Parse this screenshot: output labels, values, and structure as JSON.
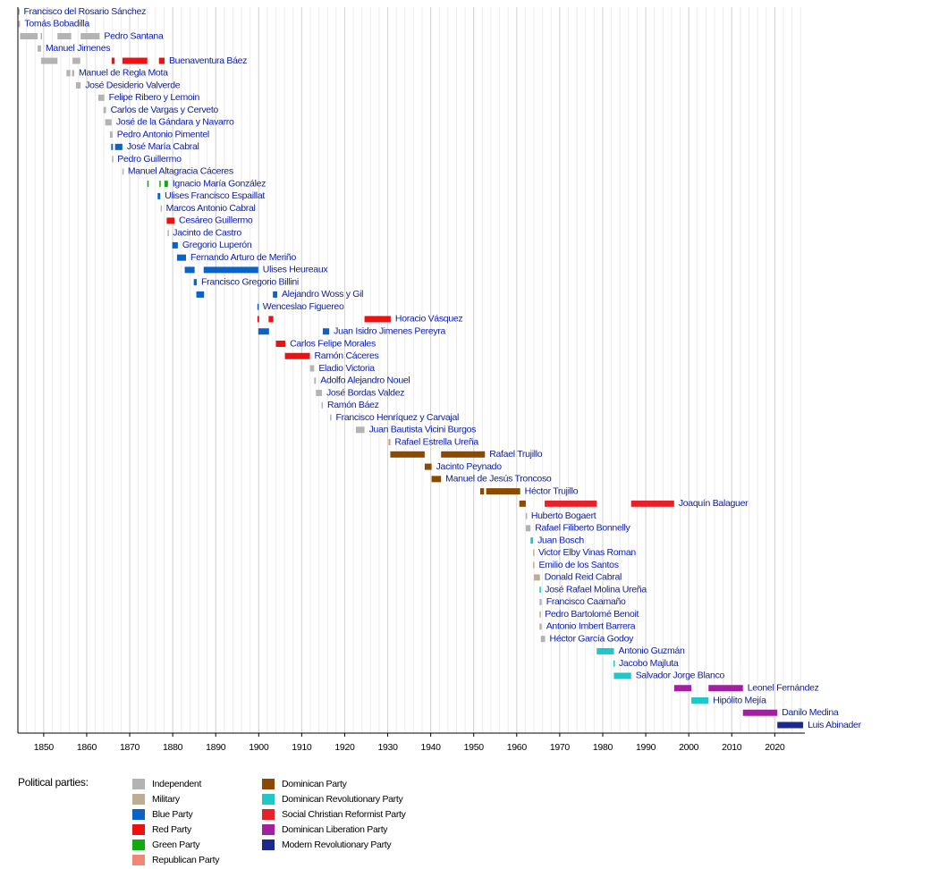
{
  "chart_data": {
    "type": "timeline",
    "xlim": [
      1844,
      2027
    ],
    "xticks": [
      1850,
      1860,
      1870,
      1880,
      1890,
      1900,
      1910,
      1920,
      1930,
      1940,
      1950,
      1960,
      1970,
      1980,
      1990,
      2000,
      2010,
      2020
    ],
    "xminorticks": [
      1846,
      1848,
      1850,
      1852,
      1854,
      1856,
      1858,
      1860,
      1862,
      1864,
      1866,
      1868,
      1870,
      1872,
      1874,
      1876,
      1878,
      1880,
      1882,
      1884,
      1886,
      1888,
      1890,
      1892,
      1894,
      1896,
      1898,
      1900,
      1902,
      1904,
      1906,
      1908,
      1910,
      1912,
      1914,
      1916,
      1918,
      1920,
      1922,
      1924,
      1926,
      1928,
      1930,
      1932,
      1934,
      1936,
      1938,
      1940,
      1942,
      1944,
      1946,
      1948,
      1950,
      1952,
      1954,
      1956,
      1958,
      1960,
      1962,
      1964,
      1966,
      1968,
      1970,
      1972,
      1974,
      1976,
      1978,
      1980,
      1982,
      1984,
      1986,
      1988,
      1990,
      1992,
      1994,
      1996,
      1998,
      2000,
      2002,
      2004,
      2006,
      2008,
      2010,
      2012,
      2014,
      2016,
      2018,
      2020,
      2022,
      2024,
      2026
    ],
    "grid": true,
    "rows": [
      {
        "name": "Francisco del Rosario Sánchez",
        "terms": [
          {
            "start": 1844.1,
            "end": 1844.3,
            "color": "#b3b3b3"
          }
        ]
      },
      {
        "name": "Tomás Bobadilla",
        "terms": [
          {
            "start": 1844.1,
            "end": 1844.5,
            "color": "#b3b3b3"
          }
        ]
      },
      {
        "name": "Pedro Santana",
        "terms": [
          {
            "start": 1844.5,
            "end": 1848.6,
            "color": "#b3b3b3"
          },
          {
            "start": 1849.3,
            "end": 1849.6,
            "color": "#b3b3b3"
          },
          {
            "start": 1853.2,
            "end": 1856.4,
            "color": "#b3b3b3"
          },
          {
            "start": 1858.6,
            "end": 1863,
            "color": "#b3b3b3"
          }
        ]
      },
      {
        "name": "Manuel Jimenes",
        "terms": [
          {
            "start": 1848.6,
            "end": 1849.4,
            "color": "#b3b3b3"
          }
        ]
      },
      {
        "name": "Buenaventura Báez",
        "terms": [
          {
            "start": 1849.4,
            "end": 1853.2,
            "color": "#b3b3b3"
          },
          {
            "start": 1856.7,
            "end": 1858.5,
            "color": "#b3b3b3"
          },
          {
            "start": 1865.8,
            "end": 1866.5,
            "color": "#ee1111"
          },
          {
            "start": 1868.3,
            "end": 1874.1,
            "color": "#ee1111"
          },
          {
            "start": 1876.8,
            "end": 1878.1,
            "color": "#ee1111"
          }
        ]
      },
      {
        "name": "Manuel de Regla Mota",
        "terms": [
          {
            "start": 1855.3,
            "end": 1856.2,
            "color": "#b3b3b3"
          },
          {
            "start": 1856.6,
            "end": 1857.1,
            "color": "#b3b3b3"
          }
        ]
      },
      {
        "name": "José Desiderio Valverde",
        "terms": [
          {
            "start": 1857.5,
            "end": 1858.6,
            "color": "#b3b3b3"
          }
        ]
      },
      {
        "name": "Felipe Ribero y Lemoin",
        "terms": [
          {
            "start": 1862.7,
            "end": 1864.1,
            "color": "#b3b3b3"
          }
        ]
      },
      {
        "name": "Carlos de Vargas y Cerveto",
        "terms": [
          {
            "start": 1863.9,
            "end": 1864.5,
            "color": "#b3b3b3"
          }
        ]
      },
      {
        "name": "José de la Gándara y Navarro",
        "terms": [
          {
            "start": 1864.3,
            "end": 1865.8,
            "color": "#b3b3b3"
          }
        ]
      },
      {
        "name": "Pedro Antonio Pimentel",
        "terms": [
          {
            "start": 1865.4,
            "end": 1866,
            "color": "#b3b3b3"
          }
        ]
      },
      {
        "name": "José María Cabral",
        "terms": [
          {
            "start": 1865.7,
            "end": 1866.1,
            "color": "#0a64c8"
          },
          {
            "start": 1866.6,
            "end": 1868.3,
            "color": "#0a64c8"
          }
        ]
      },
      {
        "name": "Pedro Guillermo",
        "terms": [
          {
            "start": 1865.9,
            "end": 1866.1,
            "color": "#b3b3b3"
          }
        ]
      },
      {
        "name": "Manuel Altagracia Cáceres",
        "terms": [
          {
            "start": 1868.3,
            "end": 1868.5,
            "color": "#b3b3b3"
          }
        ]
      },
      {
        "name": "Ignacio María González",
        "terms": [
          {
            "start": 1874.1,
            "end": 1874.4,
            "color": "#11aa11"
          },
          {
            "start": 1876.9,
            "end": 1877.2,
            "color": "#11aa11"
          },
          {
            "start": 1878.1,
            "end": 1878.9,
            "color": "#11aa11"
          }
        ]
      },
      {
        "name": "Ulises Francisco Espaillat",
        "terms": [
          {
            "start": 1876.5,
            "end": 1877.1,
            "color": "#0a64c8"
          }
        ]
      },
      {
        "name": "Marcos Antonio Cabral",
        "terms": [
          {
            "start": 1877.2,
            "end": 1877.4,
            "color": "#b3b3b3"
          }
        ]
      },
      {
        "name": "Cesáreo Guillermo",
        "terms": [
          {
            "start": 1878.6,
            "end": 1880.4,
            "color": "#ee1111"
          }
        ]
      },
      {
        "name": "Jacinto de Castro",
        "terms": [
          {
            "start": 1878.8,
            "end": 1879,
            "color": "#b3b3b3"
          }
        ]
      },
      {
        "name": "Gregorio Luperón",
        "terms": [
          {
            "start": 1879.9,
            "end": 1881.2,
            "color": "#0a64c8"
          }
        ]
      },
      {
        "name": "Fernando Arturo de Meriño",
        "terms": [
          {
            "start": 1881,
            "end": 1883.1,
            "color": "#0a64c8"
          }
        ]
      },
      {
        "name": "Ulises Heureaux",
        "terms": [
          {
            "start": 1882.8,
            "end": 1885.1,
            "color": "#0a64c8"
          },
          {
            "start": 1887.2,
            "end": 1899.9,
            "color": "#0a64c8"
          }
        ]
      },
      {
        "name": "Francisco Gregorio Billini",
        "terms": [
          {
            "start": 1884.9,
            "end": 1885.6,
            "color": "#0a64c8"
          }
        ]
      },
      {
        "name": "Alejandro Woss y Gil",
        "terms": [
          {
            "start": 1885.5,
            "end": 1887.3,
            "color": "#0a64c8"
          },
          {
            "start": 1903.3,
            "end": 1904.3,
            "color": "#0a64c8"
          }
        ]
      },
      {
        "name": "Wenceslao Figuereo",
        "terms": [
          {
            "start": 1899.7,
            "end": 1899.9,
            "color": "#0a64c8"
          }
        ]
      },
      {
        "name": "Horacio Vásquez",
        "terms": [
          {
            "start": 1899.7,
            "end": 1900.1,
            "color": "#ee1111"
          },
          {
            "start": 1902.3,
            "end": 1903.4,
            "color": "#ee1111"
          },
          {
            "start": 1924.6,
            "end": 1930.7,
            "color": "#ee1111"
          }
        ]
      },
      {
        "name": "Juan Isidro Jimenes Pereyra",
        "terms": [
          {
            "start": 1899.9,
            "end": 1902.4,
            "color": "#0a64c8"
          },
          {
            "start": 1914.9,
            "end": 1916.4,
            "color": "#0a64c8"
          }
        ]
      },
      {
        "name": "Carlos Felipe Morales",
        "terms": [
          {
            "start": 1904,
            "end": 1906.2,
            "color": "#ee1111"
          }
        ]
      },
      {
        "name": "Ramón Cáceres",
        "terms": [
          {
            "start": 1906.1,
            "end": 1911.9,
            "color": "#ee1111"
          }
        ]
      },
      {
        "name": "Eladio Victoria",
        "terms": [
          {
            "start": 1911.9,
            "end": 1912.9,
            "color": "#b3b3b3"
          }
        ]
      },
      {
        "name": "Adolfo Alejandro Nouel",
        "terms": [
          {
            "start": 1912.9,
            "end": 1913.3,
            "color": "#b3b3b3"
          }
        ]
      },
      {
        "name": "José Bordas Valdez",
        "terms": [
          {
            "start": 1913.3,
            "end": 1914.7,
            "color": "#b3b3b3"
          }
        ]
      },
      {
        "name": "Ramón Báez",
        "terms": [
          {
            "start": 1914.6,
            "end": 1914.9,
            "color": "#b3b3b3"
          }
        ]
      },
      {
        "name": "Francisco Henríquez y Carvajal",
        "terms": [
          {
            "start": 1916.6,
            "end": 1916.9,
            "color": "#b3b3b3"
          }
        ]
      },
      {
        "name": "Juan Bautista Vicini Burgos",
        "terms": [
          {
            "start": 1922.6,
            "end": 1924.6,
            "color": "#b3b3b3"
          }
        ]
      },
      {
        "name": "Rafael Estrella Ureña",
        "terms": [
          {
            "start": 1930.2,
            "end": 1930.6,
            "color": "#f08878"
          }
        ]
      },
      {
        "name": "Rafael Trujillo",
        "terms": [
          {
            "start": 1930.6,
            "end": 1938.6,
            "color": "#8b4a00"
          },
          {
            "start": 1942.4,
            "end": 1952.6,
            "color": "#8b4a00"
          }
        ]
      },
      {
        "name": "Jacinto Peynado",
        "terms": [
          {
            "start": 1938.6,
            "end": 1940.2,
            "color": "#8b4a00"
          }
        ]
      },
      {
        "name": "Manuel de Jesús Troncoso",
        "terms": [
          {
            "start": 1940.2,
            "end": 1942.4,
            "color": "#8b4a00"
          }
        ]
      },
      {
        "name": "Héctor Trujillo",
        "terms": [
          {
            "start": 1951.5,
            "end": 1952.4,
            "color": "#8b4a00"
          },
          {
            "start": 1952.9,
            "end": 1960.8,
            "color": "#8b4a00"
          }
        ]
      },
      {
        "name": "Joaquín Balaguer",
        "terms": [
          {
            "start": 1960.6,
            "end": 1962.1,
            "color": "#8b4a00"
          },
          {
            "start": 1966.5,
            "end": 1978.6,
            "color": "#e8202a"
          },
          {
            "start": 1986.6,
            "end": 1996.6,
            "color": "#e8202a"
          }
        ]
      },
      {
        "name": "Huberto Bogaert",
        "terms": [
          {
            "start": 1962.1,
            "end": 1962.3,
            "color": "#b3b3b3"
          }
        ]
      },
      {
        "name": "Rafael Filiberto Bonnelly",
        "terms": [
          {
            "start": 1962.1,
            "end": 1963.2,
            "color": "#b3b3b3"
          }
        ]
      },
      {
        "name": "Juan Bosch",
        "terms": [
          {
            "start": 1963.2,
            "end": 1963.8,
            "color": "#1ec8c8"
          }
        ]
      },
      {
        "name": "Victor Elby Vinas Roman",
        "terms": [
          {
            "start": 1963.8,
            "end": 1964,
            "color": "#bcae92"
          }
        ]
      },
      {
        "name": "Emilio de los Santos",
        "terms": [
          {
            "start": 1963.8,
            "end": 1964.1,
            "color": "#bcae92"
          }
        ]
      },
      {
        "name": "Donald Reid Cabral",
        "terms": [
          {
            "start": 1964,
            "end": 1965.4,
            "color": "#bcae92"
          }
        ]
      },
      {
        "name": "José Rafael Molina Ureña",
        "terms": [
          {
            "start": 1965.3,
            "end": 1965.5,
            "color": "#1ec8c8"
          }
        ]
      },
      {
        "name": "Francisco Caamaño",
        "terms": [
          {
            "start": 1965.3,
            "end": 1965.8,
            "color": "#b3b3b3"
          }
        ]
      },
      {
        "name": "Pedro Bartolomé Benoit",
        "terms": [
          {
            "start": 1965.3,
            "end": 1965.5,
            "color": "#bcae92"
          }
        ]
      },
      {
        "name": "Antonio Imbert Barrera",
        "terms": [
          {
            "start": 1965.3,
            "end": 1965.8,
            "color": "#bcae92"
          }
        ]
      },
      {
        "name": "Héctor García Godoy",
        "terms": [
          {
            "start": 1965.6,
            "end": 1966.6,
            "color": "#b3b3b3"
          }
        ]
      },
      {
        "name": "Antonio Guzmán",
        "terms": [
          {
            "start": 1978.6,
            "end": 1982.6,
            "color": "#1ec8c8"
          }
        ]
      },
      {
        "name": "Jacobo Majluta",
        "terms": [
          {
            "start": 1982.5,
            "end": 1982.7,
            "color": "#1ec8c8"
          }
        ]
      },
      {
        "name": "Salvador Jorge Blanco",
        "terms": [
          {
            "start": 1982.6,
            "end": 1986.6,
            "color": "#1ec8c8"
          }
        ]
      },
      {
        "name": "Leonel Fernández",
        "terms": [
          {
            "start": 1996.6,
            "end": 2000.6,
            "color": "#a020a0"
          },
          {
            "start": 2004.6,
            "end": 2012.6,
            "color": "#a020a0"
          }
        ]
      },
      {
        "name": "Hipólito Mejía",
        "terms": [
          {
            "start": 2000.6,
            "end": 2004.6,
            "color": "#1ec8c8"
          }
        ]
      },
      {
        "name": "Danilo Medina",
        "terms": [
          {
            "start": 2012.6,
            "end": 2020.6,
            "color": "#a020a0"
          }
        ]
      },
      {
        "name": "Luis Abinader",
        "terms": [
          {
            "start": 2020.6,
            "end": 2026.6,
            "color": "#1c2a8c"
          }
        ]
      }
    ],
    "legend_title": "Political parties:",
    "parties": [
      {
        "name": "Independent",
        "color": "#b3b3b3"
      },
      {
        "name": "Military",
        "color": "#bcae92"
      },
      {
        "name": "Blue Party",
        "color": "#0a64c8"
      },
      {
        "name": "Red Party",
        "color": "#ee1111"
      },
      {
        "name": "Green Party",
        "color": "#11aa11"
      },
      {
        "name": "Republican Party",
        "color": "#f08878"
      },
      {
        "name": "Dominican Party",
        "color": "#8b4a00"
      },
      {
        "name": "Dominican Revolutionary Party",
        "color": "#1ec8c8"
      },
      {
        "name": "Social Christian Reformist Party",
        "color": "#e8202a"
      },
      {
        "name": "Dominican Liberation Party",
        "color": "#a020a0"
      },
      {
        "name": "Modern Revolutionary Party",
        "color": "#1c2a8c"
      }
    ]
  }
}
